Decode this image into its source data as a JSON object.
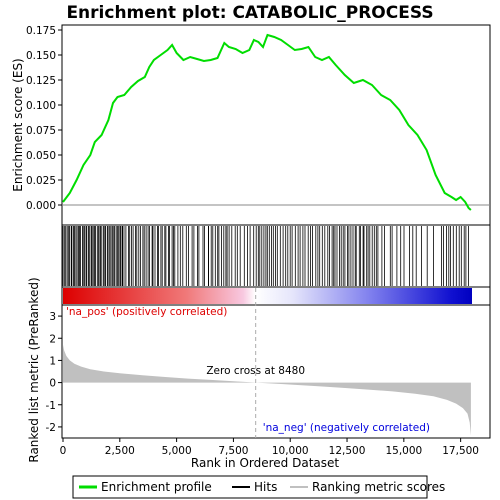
{
  "chart_data": {
    "type": "line",
    "title": "Enrichment plot: CATABOLIC_PROCESS",
    "x_range": [
      0,
      18000
    ],
    "x_ticks": [
      0,
      2500,
      5000,
      7500,
      10000,
      12500,
      15000,
      17500
    ],
    "x_tick_labels": [
      "0",
      "2,500",
      "5,000",
      "7,500",
      "10,000",
      "12,500",
      "15,000",
      "17,500"
    ],
    "xlabel": "Rank in Ordered Dataset",
    "es_panel": {
      "ylabel": "Enrichment score (ES)",
      "ylim": [
        -0.02,
        0.18
      ],
      "y_ticks": [
        0.0,
        0.025,
        0.05,
        0.075,
        0.1,
        0.125,
        0.15,
        0.175
      ],
      "y_tick_labels": [
        "0.000",
        "0.025",
        "0.050",
        "0.075",
        "0.100",
        "0.125",
        "0.150",
        "0.175"
      ],
      "series": [
        {
          "name": "Enrichment profile",
          "color": "#00dd00",
          "x": [
            0,
            300,
            600,
            900,
            1200,
            1400,
            1700,
            2000,
            2200,
            2400,
            2700,
            3000,
            3300,
            3600,
            3800,
            4000,
            4300,
            4600,
            4800,
            5000,
            5300,
            5600,
            5900,
            6200,
            6500,
            6800,
            7100,
            7300,
            7600,
            7900,
            8200,
            8400,
            8600,
            8800,
            9000,
            9300,
            9600,
            9900,
            10200,
            10500,
            10800,
            11100,
            11400,
            11700,
            12000,
            12400,
            12800,
            13200,
            13600,
            14000,
            14400,
            14800,
            15200,
            15600,
            16000,
            16400,
            16800,
            17100,
            17300,
            17500,
            17700,
            17850,
            17950
          ],
          "values": [
            0.003,
            0.012,
            0.025,
            0.04,
            0.05,
            0.063,
            0.07,
            0.085,
            0.102,
            0.108,
            0.11,
            0.118,
            0.124,
            0.128,
            0.138,
            0.145,
            0.15,
            0.155,
            0.16,
            0.152,
            0.145,
            0.148,
            0.146,
            0.144,
            0.145,
            0.147,
            0.162,
            0.158,
            0.156,
            0.152,
            0.155,
            0.165,
            0.163,
            0.158,
            0.17,
            0.168,
            0.165,
            0.16,
            0.155,
            0.156,
            0.158,
            0.148,
            0.145,
            0.148,
            0.14,
            0.13,
            0.122,
            0.125,
            0.12,
            0.11,
            0.105,
            0.095,
            0.08,
            0.07,
            0.055,
            0.03,
            0.012,
            0.008,
            0.005,
            0.008,
            0.003,
            -0.003,
            -0.005
          ]
        }
      ],
      "zero_line": 0.0
    },
    "hits_panel": {
      "name": "Hits",
      "density": [
        {
          "start": 0,
          "end": 2600,
          "step": 55
        },
        {
          "start": 2600,
          "end": 4900,
          "step": 80
        },
        {
          "start": 4900,
          "end": 6400,
          "step": 120
        },
        {
          "start": 6400,
          "end": 7500,
          "step": 90
        },
        {
          "start": 7500,
          "end": 8500,
          "step": 140
        },
        {
          "start": 8500,
          "end": 9200,
          "step": 80
        },
        {
          "start": 9200,
          "end": 11800,
          "step": 110
        },
        {
          "start": 11800,
          "end": 13800,
          "step": 85
        },
        {
          "start": 13800,
          "end": 15600,
          "step": 170
        },
        {
          "start": 15600,
          "end": 16600,
          "step": 320
        },
        {
          "start": 16600,
          "end": 17950,
          "step": 110
        }
      ]
    },
    "ranked_panel": {
      "name": "Ranking metric scores",
      "ylabel": "Ranked list metric (PreRanked)",
      "ylim": [
        -2.5,
        3.5
      ],
      "y_ticks": [
        -2,
        -1,
        0,
        1,
        2,
        3
      ],
      "y_tick_labels": [
        "-2",
        "-1",
        "0",
        "1",
        "2",
        "3"
      ],
      "x": [
        0,
        50,
        150,
        300,
        500,
        800,
        1200,
        1800,
        2500,
        3500,
        4500,
        5500,
        6500,
        7500,
        8480,
        9500,
        10500,
        11500,
        12500,
        13500,
        14500,
        15500,
        16300,
        16900,
        17300,
        17600,
        17800,
        17900,
        17950
      ],
      "values": [
        1.7,
        1.45,
        1.2,
        1.0,
        0.85,
        0.72,
        0.6,
        0.5,
        0.42,
        0.33,
        0.25,
        0.18,
        0.12,
        0.06,
        0.0,
        -0.06,
        -0.12,
        -0.18,
        -0.25,
        -0.32,
        -0.4,
        -0.5,
        -0.62,
        -0.78,
        -0.95,
        -1.15,
        -1.4,
        -1.8,
        -2.4
      ],
      "zero_cross_label": "Zero cross at 8480",
      "zero_cross": 8480,
      "pos_label": "'na_pos' (positively correlated)",
      "neg_label": "'na_neg' (negatively correlated)"
    },
    "legend": {
      "placement": "bottom",
      "items": [
        {
          "label": "Enrichment profile",
          "color": "#00dd00"
        },
        {
          "label": "Hits",
          "color": "#000000"
        },
        {
          "label": "Ranking metric scores",
          "color": "#c0c0c0"
        }
      ]
    },
    "colors": {
      "pos": "#dd0000",
      "neg": "#0000dd",
      "neutral": "#ffffff"
    }
  }
}
